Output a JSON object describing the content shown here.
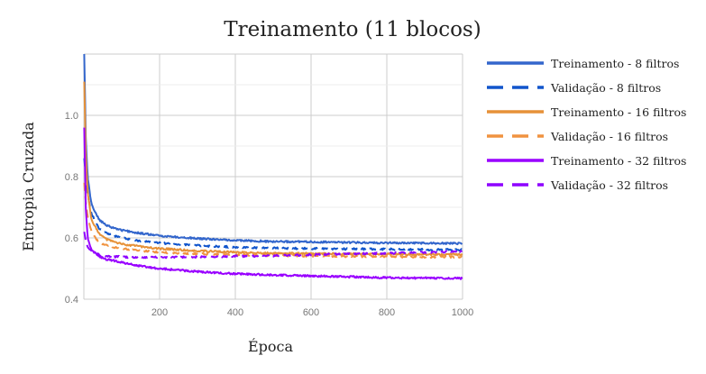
{
  "chart_data": {
    "type": "line",
    "title": "Treinamento (11 blocos)",
    "xlabel": "Época",
    "ylabel": "Entropia Cruzada",
    "xlim": [
      0,
      1000
    ],
    "ylim": [
      0.4,
      1.2
    ],
    "xticks": [
      200,
      400,
      600,
      800,
      1000
    ],
    "xtick_labels": [
      "200",
      "400",
      "600",
      "800",
      "1000"
    ],
    "yticks": [
      0.4,
      0.6,
      0.8,
      1.0
    ],
    "ytick_labels": [
      "0.4",
      "0.6",
      "0.8",
      "1.0"
    ],
    "grid": true,
    "legend_position": "right",
    "series": [
      {
        "name": "Treinamento - 8 filtros",
        "color": "#3366cc",
        "style": "solid",
        "x": [
          1,
          5,
          10,
          20,
          40,
          60,
          100,
          150,
          200,
          300,
          400,
          500,
          600,
          700,
          800,
          900,
          1000
        ],
        "y": [
          1.2,
          0.93,
          0.8,
          0.71,
          0.66,
          0.64,
          0.625,
          0.615,
          0.607,
          0.598,
          0.592,
          0.588,
          0.587,
          0.585,
          0.584,
          0.583,
          0.582
        ]
      },
      {
        "name": "Validação - 8 filtros",
        "color": "#1155cc",
        "style": "dashed",
        "x": [
          1,
          5,
          10,
          20,
          40,
          60,
          100,
          150,
          200,
          300,
          400,
          500,
          600,
          700,
          800,
          900,
          1000
        ],
        "y": [
          0.86,
          0.8,
          0.74,
          0.68,
          0.63,
          0.615,
          0.6,
          0.59,
          0.583,
          0.575,
          0.57,
          0.567,
          0.565,
          0.564,
          0.563,
          0.562,
          0.561
        ]
      },
      {
        "name": "Treinamento - 16 filtros",
        "color": "#e69138",
        "style": "solid",
        "x": [
          1,
          5,
          10,
          20,
          40,
          60,
          100,
          150,
          200,
          300,
          400,
          500,
          600,
          700,
          800,
          900,
          1000
        ],
        "y": [
          1.11,
          0.88,
          0.75,
          0.66,
          0.615,
          0.595,
          0.58,
          0.572,
          0.565,
          0.558,
          0.553,
          0.55,
          0.549,
          0.548,
          0.547,
          0.546,
          0.546
        ]
      },
      {
        "name": "Validação - 16 filtros",
        "color": "#f09340",
        "style": "dashed",
        "x": [
          1,
          5,
          10,
          20,
          40,
          60,
          100,
          150,
          200,
          300,
          400,
          500,
          600,
          700,
          800,
          900,
          1000
        ],
        "y": [
          0.78,
          0.72,
          0.67,
          0.62,
          0.585,
          0.575,
          0.565,
          0.558,
          0.553,
          0.548,
          0.545,
          0.543,
          0.541,
          0.54,
          0.539,
          0.538,
          0.538
        ]
      },
      {
        "name": "Treinamento - 32 filtros",
        "color": "#9900ff",
        "style": "solid",
        "x": [
          1,
          5,
          10,
          20,
          40,
          60,
          100,
          150,
          200,
          300,
          400,
          500,
          600,
          700,
          800,
          900,
          1000
        ],
        "y": [
          0.96,
          0.7,
          0.6,
          0.56,
          0.54,
          0.53,
          0.52,
          0.508,
          0.5,
          0.49,
          0.483,
          0.479,
          0.476,
          0.473,
          0.47,
          0.469,
          0.468
        ]
      },
      {
        "name": "Validação -  32 filtros",
        "color": "#8e00ff",
        "style": "dashed",
        "x": [
          1,
          5,
          10,
          20,
          40,
          60,
          100,
          150,
          200,
          300,
          400,
          500,
          600,
          700,
          800,
          900,
          1000
        ],
        "y": [
          0.62,
          0.59,
          0.57,
          0.555,
          0.545,
          0.54,
          0.538,
          0.537,
          0.537,
          0.538,
          0.54,
          0.542,
          0.545,
          0.548,
          0.55,
          0.553,
          0.556
        ]
      }
    ]
  }
}
